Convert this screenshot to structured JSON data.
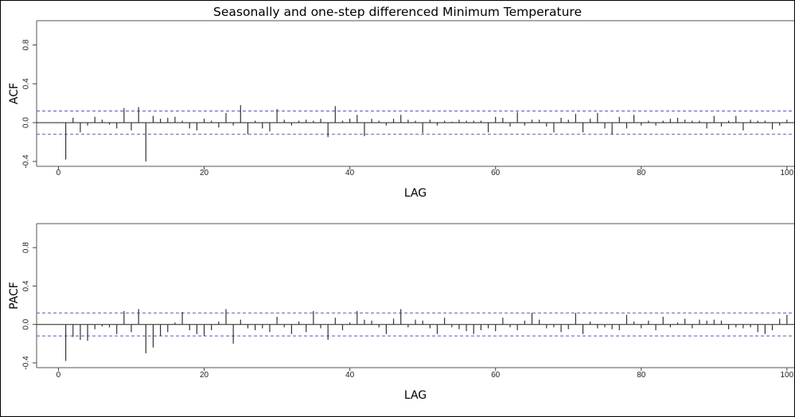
{
  "chart_data": {
    "title": "Seasonally and one-step differenced Minimum Temperature",
    "panels": [
      {
        "type": "bar",
        "ylabel": "ACF",
        "xlabel": "LAG",
        "xlim": [
          -3,
          101
        ],
        "ylim": [
          -0.45,
          1.05
        ],
        "xticks": [
          0,
          20,
          40,
          60,
          80,
          100
        ],
        "yticks": [
          -0.4,
          0.0,
          0.4,
          0.8
        ],
        "ytick_labels": [
          "-0.4",
          "0.0",
          "0.4",
          "0.8"
        ],
        "conf_band": 0.12,
        "lags": [
          1,
          2,
          3,
          4,
          5,
          6,
          7,
          8,
          9,
          10,
          11,
          12,
          13,
          14,
          15,
          16,
          17,
          18,
          19,
          20,
          21,
          22,
          23,
          24,
          25,
          26,
          27,
          28,
          29,
          30,
          31,
          32,
          33,
          34,
          35,
          36,
          37,
          38,
          39,
          40,
          41,
          42,
          43,
          44,
          45,
          46,
          47,
          48,
          49,
          50,
          51,
          52,
          53,
          54,
          55,
          56,
          57,
          58,
          59,
          60,
          61,
          62,
          63,
          64,
          65,
          66,
          67,
          68,
          69,
          70,
          71,
          72,
          73,
          74,
          75,
          76,
          77,
          78,
          79,
          80,
          81,
          82,
          83,
          84,
          85,
          86,
          87,
          88,
          89,
          90,
          91,
          92,
          93,
          94,
          95,
          96,
          97,
          98,
          99,
          100
        ],
        "values": [
          -0.38,
          0.05,
          -0.1,
          -0.03,
          0.06,
          0.03,
          -0.02,
          -0.06,
          0.15,
          -0.08,
          0.16,
          -0.4,
          0.07,
          0.04,
          0.05,
          0.06,
          0.02,
          -0.06,
          -0.08,
          0.04,
          0.02,
          -0.05,
          0.1,
          -0.03,
          0.18,
          -0.12,
          0.02,
          -0.06,
          -0.09,
          0.14,
          0.03,
          -0.03,
          0.02,
          0.03,
          0.02,
          0.04,
          -0.15,
          0.17,
          0.02,
          0.04,
          0.08,
          -0.14,
          0.04,
          0.02,
          -0.03,
          0.04,
          0.08,
          0.03,
          0.02,
          -0.11,
          0.03,
          -0.03,
          0.02,
          0.01,
          0.03,
          0.02,
          0.02,
          0.02,
          -0.1,
          0.06,
          0.05,
          -0.04,
          0.11,
          -0.03,
          0.03,
          0.03,
          -0.04,
          -0.1,
          0.05,
          0.03,
          0.09,
          -0.1,
          0.04,
          0.1,
          -0.06,
          -0.12,
          0.06,
          -0.06,
          0.08,
          -0.03,
          0.02,
          -0.03,
          0.02,
          0.04,
          0.05,
          0.03,
          0.02,
          0.02,
          -0.06,
          0.07,
          -0.04,
          0.02,
          0.07,
          -0.08,
          0.03,
          0.02,
          0.02,
          -0.07,
          -0.03,
          0.03
        ]
      },
      {
        "type": "bar",
        "ylabel": "PACF",
        "xlabel": "LAG",
        "xlim": [
          -3,
          101
        ],
        "ylim": [
          -0.45,
          1.05
        ],
        "xticks": [
          0,
          20,
          40,
          60,
          80,
          100
        ],
        "yticks": [
          -0.4,
          0.0,
          0.4,
          0.8
        ],
        "ytick_labels": [
          "-0.4",
          "0.0",
          "0.4",
          "0.8"
        ],
        "conf_band": 0.12,
        "lags": [
          1,
          2,
          3,
          4,
          5,
          6,
          7,
          8,
          9,
          10,
          11,
          12,
          13,
          14,
          15,
          16,
          17,
          18,
          19,
          20,
          21,
          22,
          23,
          24,
          25,
          26,
          27,
          28,
          29,
          30,
          31,
          32,
          33,
          34,
          35,
          36,
          37,
          38,
          39,
          40,
          41,
          42,
          43,
          44,
          45,
          46,
          47,
          48,
          49,
          50,
          51,
          52,
          53,
          54,
          55,
          56,
          57,
          58,
          59,
          60,
          61,
          62,
          63,
          64,
          65,
          66,
          67,
          68,
          69,
          70,
          71,
          72,
          73,
          74,
          75,
          76,
          77,
          78,
          79,
          80,
          81,
          82,
          83,
          84,
          85,
          86,
          87,
          88,
          89,
          90,
          91,
          92,
          93,
          94,
          95,
          96,
          97,
          98,
          99,
          100
        ],
        "values": [
          -0.38,
          -0.13,
          -0.16,
          -0.17,
          -0.05,
          -0.02,
          -0.03,
          -0.1,
          0.14,
          -0.08,
          0.16,
          -0.3,
          -0.24,
          -0.12,
          -0.08,
          0.02,
          0.13,
          -0.06,
          -0.1,
          -0.12,
          -0.06,
          0.03,
          0.16,
          -0.2,
          0.05,
          -0.04,
          -0.06,
          -0.04,
          -0.08,
          0.08,
          -0.03,
          -0.1,
          0.03,
          -0.08,
          0.14,
          -0.04,
          -0.16,
          0.07,
          -0.06,
          0.02,
          0.14,
          0.05,
          0.04,
          -0.03,
          -0.1,
          0.06,
          0.16,
          -0.03,
          0.05,
          0.04,
          -0.04,
          -0.1,
          0.07,
          -0.03,
          -0.05,
          -0.07,
          -0.1,
          -0.06,
          -0.04,
          -0.07,
          0.07,
          -0.03,
          -0.06,
          0.04,
          0.12,
          0.05,
          -0.04,
          -0.03,
          -0.08,
          -0.05,
          0.12,
          -0.1,
          0.03,
          -0.04,
          -0.03,
          -0.05,
          -0.06,
          0.1,
          0.03,
          -0.04,
          0.04,
          -0.06,
          0.08,
          -0.03,
          0.02,
          0.06,
          -0.04,
          0.05,
          0.04,
          0.05,
          0.04,
          -0.05,
          -0.03,
          -0.04,
          -0.03,
          -0.08,
          -0.1,
          -0.06,
          0.06,
          0.1
        ]
      }
    ]
  }
}
